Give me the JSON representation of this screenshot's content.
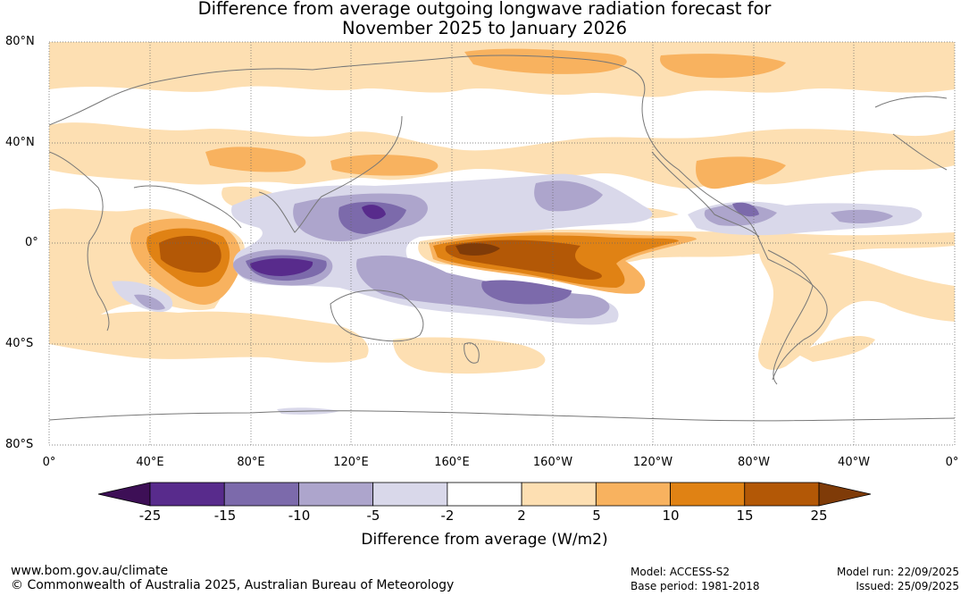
{
  "title": {
    "line1": "Difference from average outgoing longwave radiation forecast for",
    "line2": "November 2025 to January 2026"
  },
  "latitude_labels": [
    "80°N",
    "40°N",
    "0°",
    "40°S",
    "80°S"
  ],
  "longitude_labels": [
    "0°",
    "40°E",
    "80°E",
    "120°E",
    "160°E",
    "160°W",
    "120°W",
    "80°W",
    "40°W",
    "0°"
  ],
  "colorbar": {
    "ticks": [
      "-25",
      "-15",
      "-10",
      "-5",
      "-2",
      "2",
      "5",
      "10",
      "15",
      "25"
    ],
    "colors": [
      "#3d0f56",
      "#582b8c",
      "#7c6aab",
      "#ada5cc",
      "#d9d8ea",
      "#ffffff",
      "#fddfb2",
      "#f8b25f",
      "#e08214",
      "#b35806",
      "#7f3b08"
    ],
    "label": "Difference from average (W/m2)"
  },
  "footer": {
    "website": "www.bom.gov.au/climate",
    "copyright": "© Commonwealth of Australia 2025, Australian Bureau of Meteorology",
    "model": "Model: ACCESS-S2",
    "base_period": "Base period: 1981-2018",
    "model_run": "Model run: 22/09/2025",
    "issued": "Issued: 25/09/2025"
  }
}
